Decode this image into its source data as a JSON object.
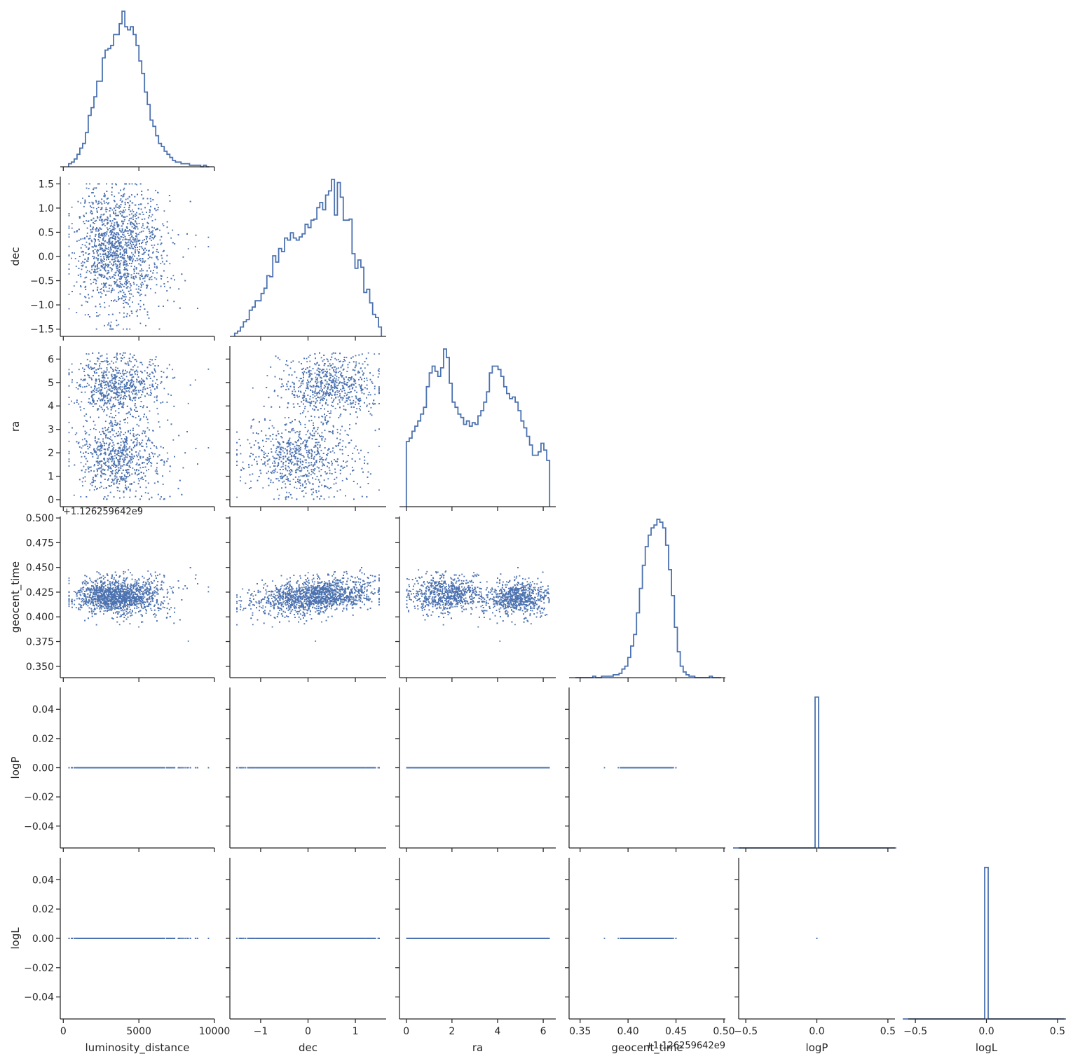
{
  "chart_data": {
    "type": "scatter",
    "layout": "corner-pairplot",
    "color": "#4c72b0",
    "variables": [
      "luminosity_distance",
      "dec",
      "ra",
      "geocent_time",
      "logP",
      "logL"
    ],
    "axes": {
      "luminosity_distance": {
        "label": "luminosity_distance",
        "range": [
          -200,
          10000
        ],
        "ticks": [
          0,
          5000,
          10000
        ],
        "tick_labels": [
          "0",
          "5000",
          "10000"
        ],
        "offset_text": ""
      },
      "dec": {
        "label": "dec",
        "range": [
          -1.65,
          1.65
        ],
        "ticks": [
          -1.5,
          -1.0,
          -0.5,
          0.0,
          0.5,
          1.0,
          1.5
        ],
        "tick_labels": [
          "−1.5",
          "−1.0",
          "−0.5",
          "0.0",
          "0.5",
          "1.0",
          "1.5"
        ],
        "x_ticks": [
          -1,
          0,
          1
        ],
        "x_tick_labels": [
          "−1",
          "0",
          "1"
        ],
        "offset_text": ""
      },
      "ra": {
        "label": "ra",
        "range": [
          -0.3,
          6.55
        ],
        "ticks": [
          0,
          1,
          2,
          3,
          4,
          5,
          6
        ],
        "tick_labels": [
          "0",
          "1",
          "2",
          "3",
          "4",
          "5",
          "6"
        ],
        "x_ticks": [
          0,
          2,
          4,
          6
        ],
        "x_tick_labels": [
          "0",
          "2",
          "4",
          "6"
        ],
        "offset_text": ""
      },
      "geocent_time": {
        "label": "geocent_time",
        "range": [
          0.3385,
          0.5015
        ],
        "ticks": [
          0.35,
          0.375,
          0.4,
          0.425,
          0.45,
          0.475,
          0.5
        ],
        "tick_labels": [
          "0.350",
          "0.375",
          "0.400",
          "0.425",
          "0.450",
          "0.475",
          "0.500"
        ],
        "x_ticks": [
          0.35,
          0.4,
          0.45,
          0.5
        ],
        "x_tick_labels": [
          "0.35",
          "0.40",
          "0.45",
          "0.50"
        ],
        "offset_text": "+1.126259642e9"
      },
      "logP": {
        "label": "logP",
        "range": [
          -0.055,
          0.055
        ],
        "ticks": [
          -0.04,
          -0.02,
          0.0,
          0.02,
          0.04
        ],
        "tick_labels": [
          "−0.04",
          "−0.02",
          "0.00",
          "0.02",
          "0.04"
        ],
        "x_range": [
          -0.55,
          0.55
        ],
        "x_ticks": [
          -0.5,
          0.0,
          0.5
        ],
        "x_tick_labels": [
          "−0.5",
          "0.0",
          "0.5"
        ],
        "offset_text": ""
      },
      "logL": {
        "label": "logL",
        "range": [
          -0.055,
          0.055
        ],
        "ticks": [
          -0.04,
          -0.02,
          0.0,
          0.02,
          0.04
        ],
        "tick_labels": [
          "−0.04",
          "−0.02",
          "0.00",
          "0.02",
          "0.04"
        ],
        "x_range": [
          -0.55,
          0.55
        ],
        "x_ticks": [
          -0.5,
          0.0,
          0.5
        ],
        "x_tick_labels": [
          "−0.5",
          "0.0",
          "0.5"
        ],
        "offset_text": ""
      }
    },
    "diagonal_histograms": {
      "luminosity_distance": {
        "bin_edges_range": [
          350,
          9650
        ],
        "bins": 50,
        "relative_counts": [
          2,
          3,
          5,
          8,
          12,
          15,
          22,
          33,
          38,
          45,
          55,
          55,
          70,
          75,
          76,
          78,
          85,
          85,
          92,
          100,
          90,
          88,
          90,
          85,
          78,
          68,
          60,
          48,
          40,
          30,
          26,
          20,
          15,
          13,
          10,
          8,
          6,
          4,
          3,
          3,
          2,
          2,
          2,
          1,
          1,
          1,
          1,
          0,
          1,
          0
        ]
      },
      "dec": {
        "bin_edges_range": [
          -1.55,
          1.55
        ],
        "bins": 50,
        "relative_counts": [
          3,
          5,
          9,
          14,
          16,
          25,
          28,
          34,
          34,
          41,
          46,
          58,
          57,
          77,
          71,
          84,
          81,
          94,
          92,
          99,
          94,
          92,
          95,
          98,
          107,
          104,
          111,
          112,
          123,
          128,
          121,
          135,
          139,
          150,
          116,
          147,
          133,
          111,
          111,
          112,
          79,
          65,
          73,
          66,
          42,
          45,
          32,
          21,
          18,
          9
        ]
      },
      "ra": {
        "bin_edges_range": [
          0.0,
          6.28
        ],
        "bins": 50,
        "relative_counts": [
          38,
          40,
          44,
          47,
          50,
          54,
          58,
          70,
          78,
          82,
          79,
          76,
          81,
          92,
          87,
          72,
          61,
          58,
          54,
          52,
          48,
          50,
          47,
          49,
          48,
          53,
          56,
          61,
          67,
          78,
          82,
          82,
          80,
          76,
          70,
          66,
          63,
          64,
          61,
          56,
          50,
          46,
          41,
          36,
          30,
          30,
          32,
          37,
          33,
          27
        ]
      },
      "geocent_time": {
        "bin_edges_range": [
          0.345,
          0.497
        ],
        "bins": 50,
        "relative_counts": [
          0,
          0,
          0,
          0,
          0,
          0,
          1,
          0,
          0,
          1,
          1,
          1,
          1,
          2,
          2,
          3,
          6,
          8,
          14,
          22,
          30,
          45,
          62,
          78,
          91,
          99,
          104,
          106,
          110,
          108,
          104,
          92,
          75,
          57,
          35,
          18,
          8,
          4,
          2,
          1,
          1,
          0,
          0,
          0,
          0,
          0,
          1,
          0,
          0,
          0
        ]
      },
      "logP": {
        "spike_at": 0.0,
        "relative_counts": [
          0,
          100,
          0
        ]
      },
      "logL": {
        "spike_at": 0.0,
        "relative_counts": [
          0,
          100,
          0
        ]
      }
    },
    "scatter_structure": {
      "dec_vs_luminosity_distance": "dense cloud centered ~3500, dec spread -1.5 to 1.5, sparse tail to 9500",
      "ra_vs_luminosity_distance": "two dense clusters at ra ~1.8 and ~4.8, distance 1000-6000",
      "geocent_time_vs_luminosity_distance": "tight cluster ~0.420 near 3500, spread widening with distance, outliers down to 0.345",
      "ra_vs_dec": "cluster ra~1.8 dec~-0.3 and cluster ra~4.8 dec~0.5, sparse elsewhere",
      "geocent_time_vs_dec": "positive trend 0.410 at dec -1.5 to 0.435 at dec 1.5",
      "geocent_time_vs_ra": "band ~0.425 for ra<3, ~0.415 for ra>3.5",
      "logP_logL": "all samples exactly 0.0"
    }
  }
}
